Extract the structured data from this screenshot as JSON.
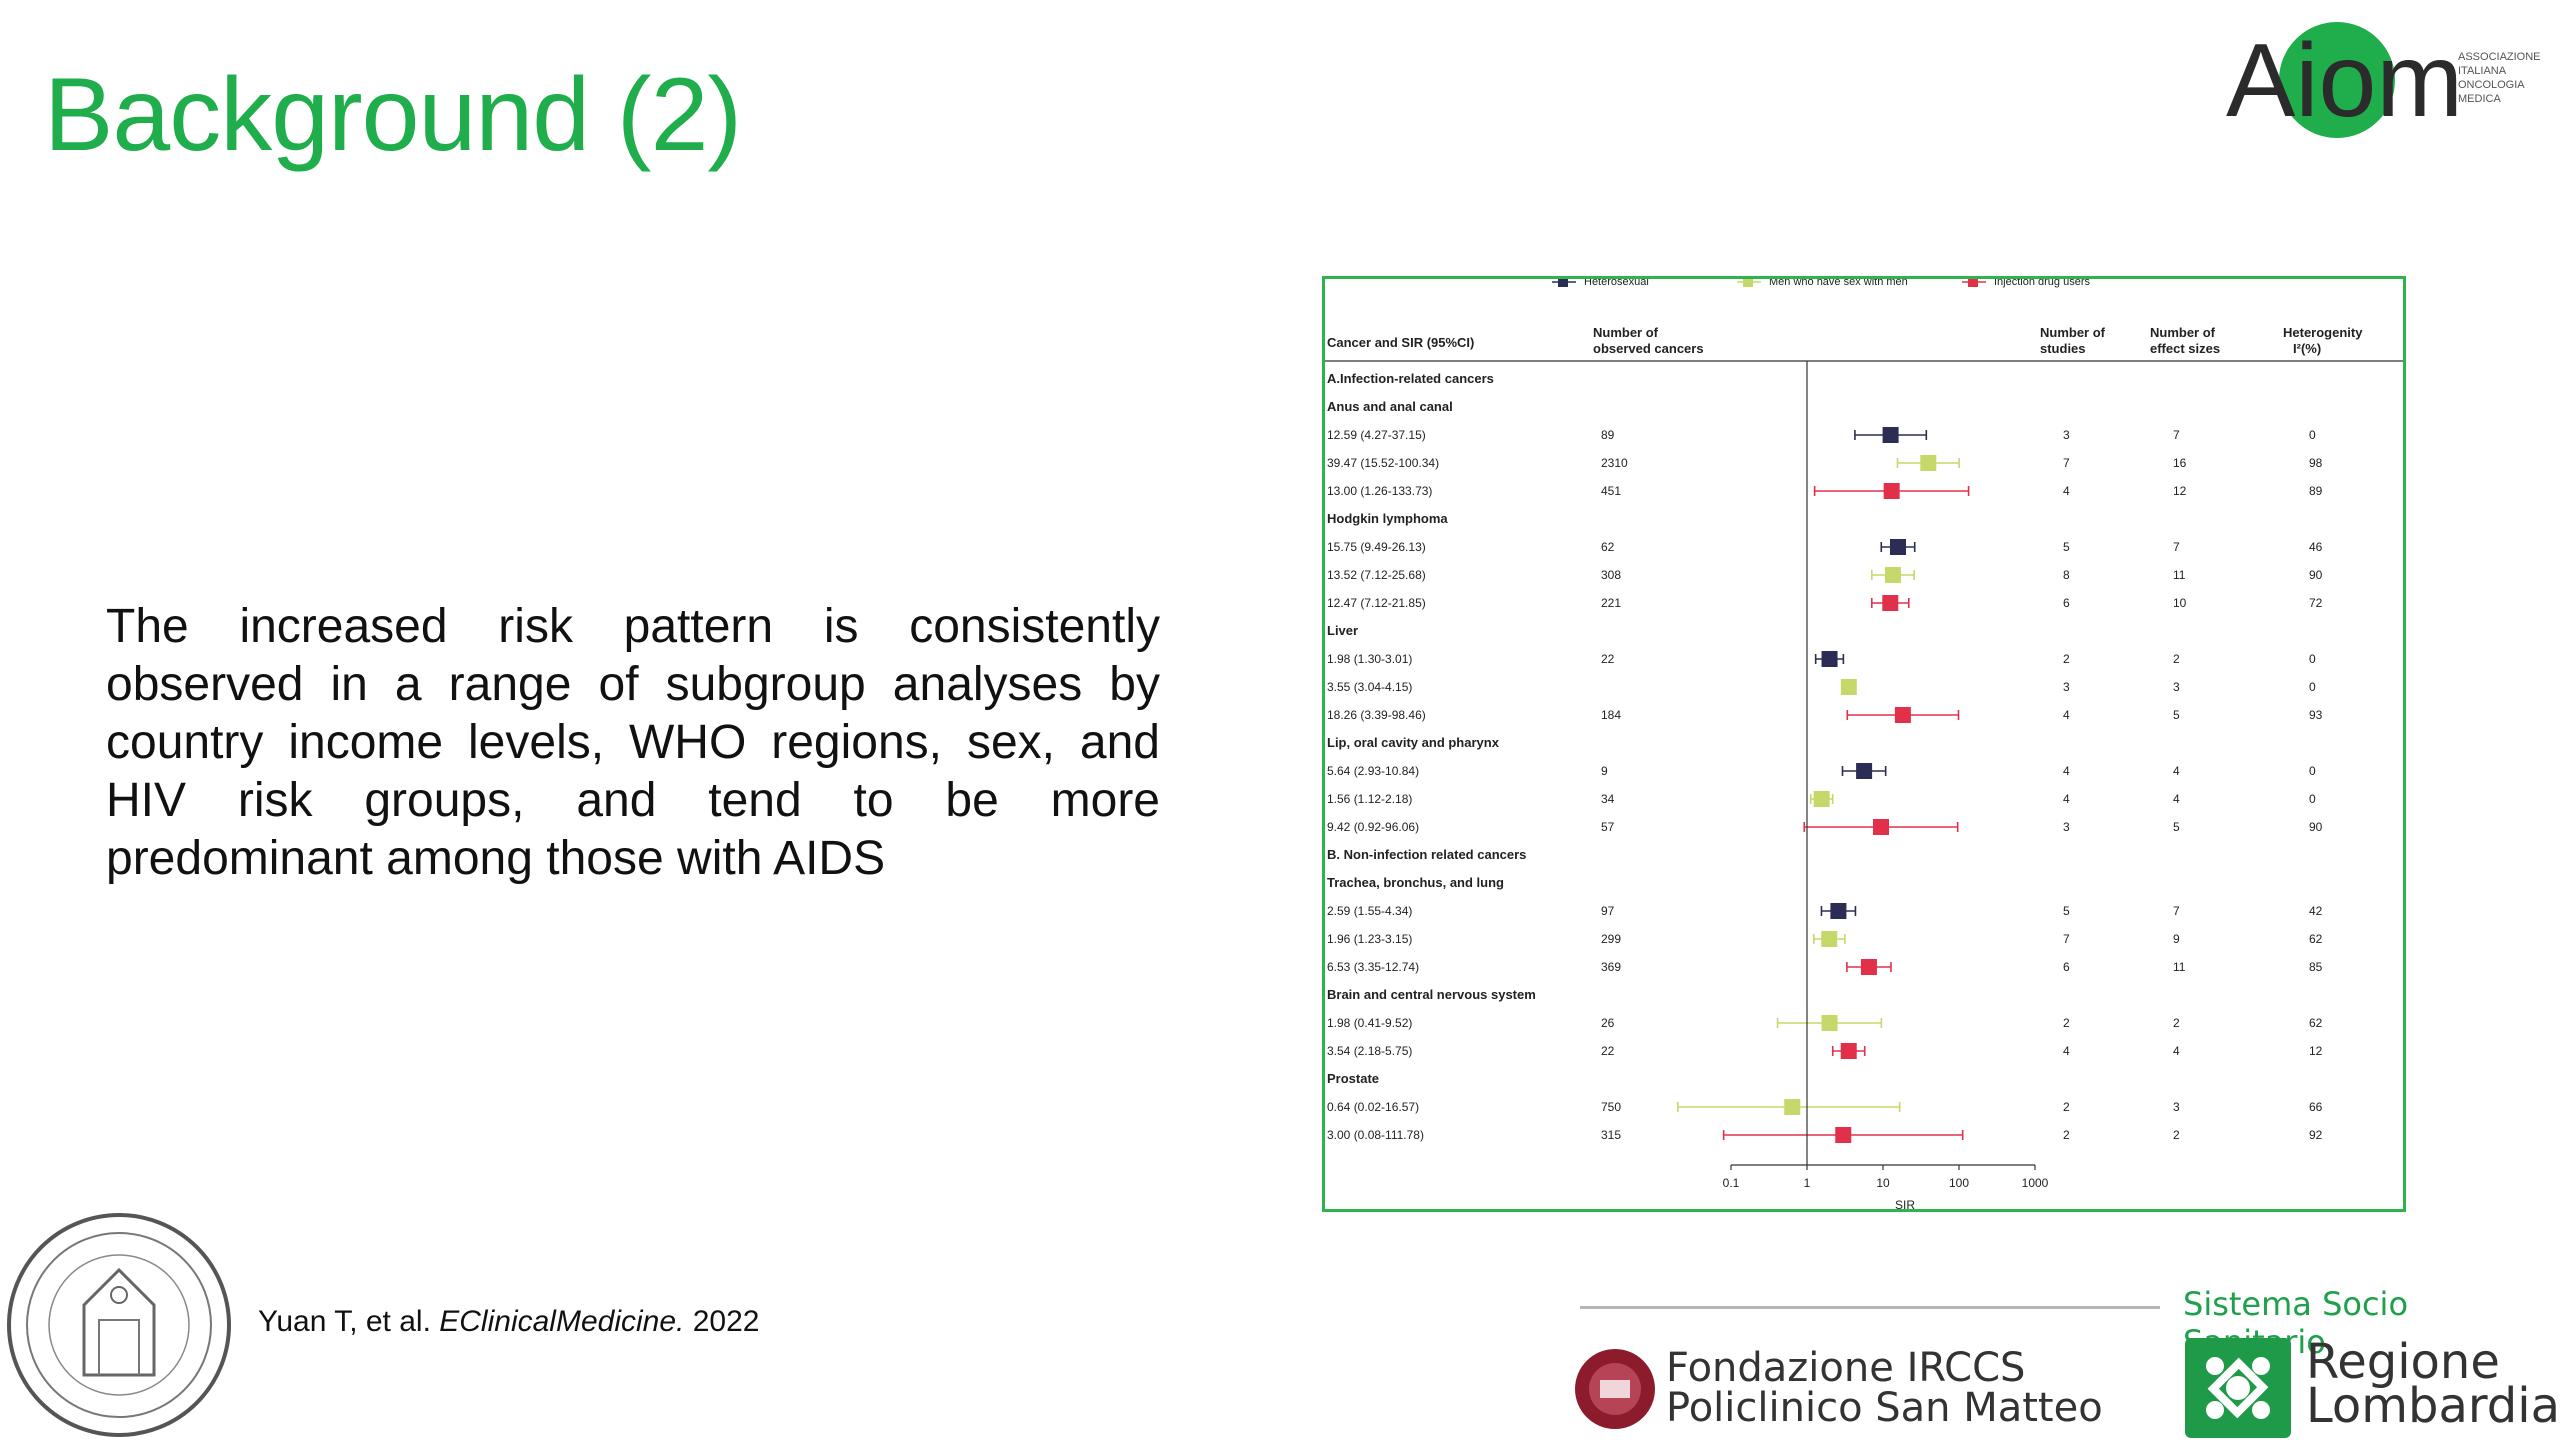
{
  "slide": {
    "title": "Background (2)",
    "body": "The increased risk pattern is consistently observed in a range of subgroup analyses by country income levels, WHO regions, sex, and HIV risk groups, and tend to be more predominant among those with AIDS",
    "citation_authors": "Yuan T, et al. ",
    "citation_journal": "EClinicalMedicine.",
    "citation_year": " 2022"
  },
  "logos": {
    "aiom": "Aiom",
    "aiom_sub": [
      "ASSOCIAZIONE",
      "ITALIANA",
      "ONCOLOGIA",
      "MEDICA"
    ],
    "footer_org": "Sistema Socio Sanitario",
    "fondazione_line1": "Fondazione IRCCS",
    "fondazione_line2": "Policlinico San Matteo",
    "regione_line1": "Regione",
    "regione_line2": "Lombardia"
  },
  "colors": {
    "title": "#1fae4b",
    "heterosexual": "#2b2d55",
    "msm": "#c5d96a",
    "idu": "#e0304a",
    "chart_border": "#2eb34f"
  },
  "chart_data": {
    "type": "forest",
    "xlabel": "SIR",
    "xscale": "log",
    "xlim": [
      0.1,
      1000
    ],
    "xticks": [
      "0.1",
      "1",
      "10",
      "100",
      "1000"
    ],
    "reference_line": 1,
    "legend": [
      "Heterosexual",
      "Men who have sex with men",
      "Injection drug users"
    ],
    "legend_position": "top",
    "headers": {
      "col1": "Cancer and SIR (95%CI)",
      "col2a": "Number of",
      "col2b": "observed cancers",
      "col3a": "Number of",
      "col3b": "studies",
      "col4a": "Number of",
      "col4b": "effect sizes",
      "col5a": "Heterogenity",
      "col5b": "I²(%)"
    },
    "rows": [
      {
        "kind": "section",
        "label": "A.Infection-related cancers"
      },
      {
        "kind": "group",
        "label": "Anus and anal canal"
      },
      {
        "kind": "data",
        "group": 0,
        "label": "12.59 (4.27-37.15)",
        "sir": 12.59,
        "lo": 4.27,
        "hi": 37.15,
        "observed": "89",
        "studies": "3",
        "effects": "7",
        "i2": "0"
      },
      {
        "kind": "data",
        "group": 1,
        "label": "39.47 (15.52-100.34)",
        "sir": 39.47,
        "lo": 15.52,
        "hi": 100.34,
        "observed": "2310",
        "studies": "7",
        "effects": "16",
        "i2": "98"
      },
      {
        "kind": "data",
        "group": 2,
        "label": "13.00 (1.26-133.73)",
        "sir": 13.0,
        "lo": 1.26,
        "hi": 133.73,
        "observed": "451",
        "studies": "4",
        "effects": "12",
        "i2": "89"
      },
      {
        "kind": "group",
        "label": "Hodgkin lymphoma"
      },
      {
        "kind": "data",
        "group": 0,
        "label": "15.75 (9.49-26.13)",
        "sir": 15.75,
        "lo": 9.49,
        "hi": 26.13,
        "observed": "62",
        "studies": "5",
        "effects": "7",
        "i2": "46"
      },
      {
        "kind": "data",
        "group": 1,
        "label": "13.52 (7.12-25.68)",
        "sir": 13.52,
        "lo": 7.12,
        "hi": 25.68,
        "observed": "308",
        "studies": "8",
        "effects": "11",
        "i2": "90"
      },
      {
        "kind": "data",
        "group": 2,
        "label": "12.47 (7.12-21.85)",
        "sir": 12.47,
        "lo": 7.12,
        "hi": 21.85,
        "observed": "221",
        "studies": "6",
        "effects": "10",
        "i2": "72"
      },
      {
        "kind": "group",
        "label": "Liver"
      },
      {
        "kind": "data",
        "group": 0,
        "label": "1.98 (1.30-3.01)",
        "sir": 1.98,
        "lo": 1.3,
        "hi": 3.01,
        "observed": "22",
        "studies": "2",
        "effects": "2",
        "i2": "0"
      },
      {
        "kind": "data",
        "group": 1,
        "label": "3.55 (3.04-4.15)",
        "sir": 3.55,
        "lo": 3.04,
        "hi": 4.15,
        "observed": "",
        "studies": "3",
        "effects": "3",
        "i2": "0"
      },
      {
        "kind": "data",
        "group": 2,
        "label": "18.26 (3.39-98.46)",
        "sir": 18.26,
        "lo": 3.39,
        "hi": 98.46,
        "observed": "184",
        "studies": "4",
        "effects": "5",
        "i2": "93"
      },
      {
        "kind": "group",
        "label": "Lip, oral cavity and pharynx"
      },
      {
        "kind": "data",
        "group": 0,
        "label": "5.64 (2.93-10.84)",
        "sir": 5.64,
        "lo": 2.93,
        "hi": 10.84,
        "observed": "9",
        "studies": "4",
        "effects": "4",
        "i2": "0"
      },
      {
        "kind": "data",
        "group": 1,
        "label": "1.56 (1.12-2.18)",
        "sir": 1.56,
        "lo": 1.12,
        "hi": 2.18,
        "observed": "34",
        "studies": "4",
        "effects": "4",
        "i2": "0"
      },
      {
        "kind": "data",
        "group": 2,
        "label": "9.42 (0.92-96.06)",
        "sir": 9.42,
        "lo": 0.92,
        "hi": 96.06,
        "observed": "57",
        "studies": "3",
        "effects": "5",
        "i2": "90"
      },
      {
        "kind": "section",
        "label": "B. Non-infection related cancers"
      },
      {
        "kind": "group",
        "label": "Trachea, bronchus, and lung"
      },
      {
        "kind": "data",
        "group": 0,
        "label": "2.59 (1.55-4.34)",
        "sir": 2.59,
        "lo": 1.55,
        "hi": 4.34,
        "observed": "97",
        "studies": "5",
        "effects": "7",
        "i2": "42"
      },
      {
        "kind": "data",
        "group": 1,
        "label": "1.96 (1.23-3.15)",
        "sir": 1.96,
        "lo": 1.23,
        "hi": 3.15,
        "observed": "299",
        "studies": "7",
        "effects": "9",
        "i2": "62"
      },
      {
        "kind": "data",
        "group": 2,
        "label": "6.53 (3.35-12.74)",
        "sir": 6.53,
        "lo": 3.35,
        "hi": 12.74,
        "observed": "369",
        "studies": "6",
        "effects": "11",
        "i2": "85"
      },
      {
        "kind": "group",
        "label": "Brain and central nervous system"
      },
      {
        "kind": "data",
        "group": 1,
        "label": "1.98 (0.41-9.52)",
        "sir": 1.98,
        "lo": 0.41,
        "hi": 9.52,
        "observed": "26",
        "studies": "2",
        "effects": "2",
        "i2": "62"
      },
      {
        "kind": "data",
        "group": 2,
        "label": "3.54 (2.18-5.75)",
        "sir": 3.54,
        "lo": 2.18,
        "hi": 5.75,
        "observed": "22",
        "studies": "4",
        "effects": "4",
        "i2": "12"
      },
      {
        "kind": "group",
        "label": "Prostate"
      },
      {
        "kind": "data",
        "group": 1,
        "label": "0.64 (0.02-16.57)",
        "sir": 0.64,
        "lo": 0.02,
        "hi": 16.57,
        "observed": "750",
        "studies": "2",
        "effects": "3",
        "i2": "66"
      },
      {
        "kind": "data",
        "group": 2,
        "label": "3.00 (0.08-111.78)",
        "sir": 3.0,
        "lo": 0.08,
        "hi": 111.78,
        "observed": "315",
        "studies": "2",
        "effects": "2",
        "i2": "92"
      }
    ]
  }
}
